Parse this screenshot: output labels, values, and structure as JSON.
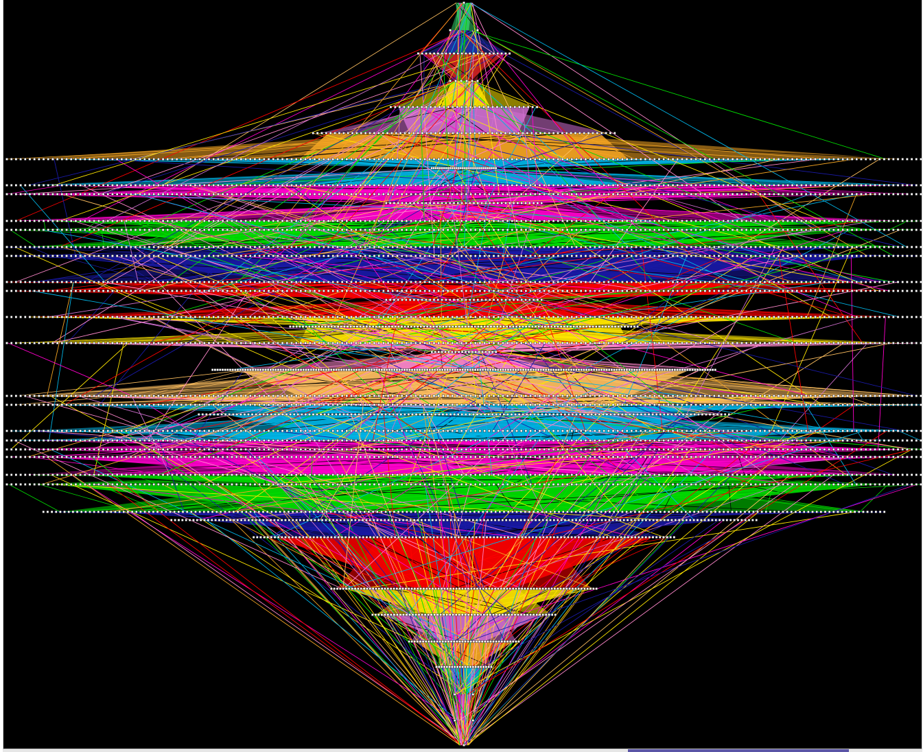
{
  "diagram": {
    "kind": "layered-graph",
    "background": "#000000",
    "node_color": "#ffffff",
    "edge_palette": [
      "#f5a623",
      "#00b4e6",
      "#ff00cc",
      "#00e000",
      "#1a1aa8",
      "#ff0000",
      "#ffe600",
      "#ff88cc",
      "#ffc060",
      "#d070d0"
    ],
    "layers": [
      {
        "nodes": 1,
        "span": 0.02,
        "color": "#33cc66"
      },
      {
        "nodes": 2,
        "span": 0.03,
        "color": "#2233aa"
      },
      {
        "nodes": 24,
        "span": 0.1,
        "color": "#cc2222"
      },
      {
        "nodes": 6,
        "span": 0.03,
        "color": "#ffe600"
      },
      {
        "nodes": 34,
        "span": 0.16,
        "color": "#d070d0"
      },
      {
        "nodes": 70,
        "span": 0.33,
        "color": "#f5a623"
      },
      {
        "nodes": 200,
        "span": 1.0,
        "color": "#00b4e6"
      },
      {
        "nodes": 32,
        "span": 0.07,
        "color": "#00b4e6"
      },
      {
        "nodes": 200,
        "span": 1.0,
        "color": "#ff00cc"
      },
      {
        "nodes": 200,
        "span": 1.0,
        "color": "#ff00cc"
      },
      {
        "nodes": 40,
        "span": 0.17,
        "color": "#ff00cc"
      },
      {
        "nodes": 200,
        "span": 1.0,
        "color": "#00e000"
      },
      {
        "nodes": 200,
        "span": 1.0,
        "color": "#00e000"
      },
      {
        "nodes": 200,
        "span": 1.0,
        "color": "#1a1aa8"
      },
      {
        "nodes": 200,
        "span": 1.0,
        "color": "#1a1aa8"
      },
      {
        "nodes": 200,
        "span": 1.0,
        "color": "#ff0000"
      },
      {
        "nodes": 200,
        "span": 1.0,
        "color": "#ff0000"
      },
      {
        "nodes": 40,
        "span": 0.17,
        "color": "#ff0000"
      },
      {
        "nodes": 200,
        "span": 1.0,
        "color": "#ffe600"
      },
      {
        "nodes": 110,
        "span": 0.38,
        "color": "#ffe600"
      },
      {
        "nodes": 200,
        "span": 1.0,
        "color": "#ff88cc"
      },
      {
        "nodes": 20,
        "span": 0.07,
        "color": "#ff88cc"
      },
      {
        "nodes": 200,
        "span": 0.55,
        "color": "#ffc060"
      },
      {
        "nodes": 200,
        "span": 1.0,
        "color": "#ffc060"
      },
      {
        "nodes": 200,
        "span": 1.0,
        "color": "#00b4e6"
      },
      {
        "nodes": 140,
        "span": 0.58,
        "color": "#00b4e6"
      },
      {
        "nodes": 200,
        "span": 1.0,
        "color": "#00b4e6"
      },
      {
        "nodes": 200,
        "span": 1.0,
        "color": "#ff00cc"
      },
      {
        "nodes": 200,
        "span": 1.0,
        "color": "#ff00cc"
      },
      {
        "nodes": 200,
        "span": 1.0,
        "color": "#ff00cc"
      },
      {
        "nodes": 200,
        "span": 1.0,
        "color": "#00e000"
      },
      {
        "nodes": 200,
        "span": 1.0,
        "color": "#00e000"
      },
      {
        "nodes": 200,
        "span": 0.92,
        "color": "#1a1aa8"
      },
      {
        "nodes": 160,
        "span": 0.64,
        "color": "#1a1aa8"
      },
      {
        "nodes": 120,
        "span": 0.46,
        "color": "#ff0000"
      },
      {
        "nodes": 90,
        "span": 0.29,
        "color": "#ffe600"
      },
      {
        "nodes": 60,
        "span": 0.2,
        "color": "#d070d0"
      },
      {
        "nodes": 40,
        "span": 0.12,
        "color": "#f5a623"
      },
      {
        "nodes": 22,
        "span": 0.06,
        "color": "#00b4e6"
      },
      {
        "nodes": 2,
        "span": 0.02,
        "color": "#ff00cc"
      },
      {
        "nodes": 2,
        "span": 0.02,
        "color": "#33cc66"
      },
      {
        "nodes": 1,
        "span": 0.01,
        "color": "#33cc66"
      }
    ],
    "scrollbar": {
      "thumb_start": 0.68,
      "thumb_end": 0.92,
      "thumb_color": "#5a55a6"
    }
  }
}
